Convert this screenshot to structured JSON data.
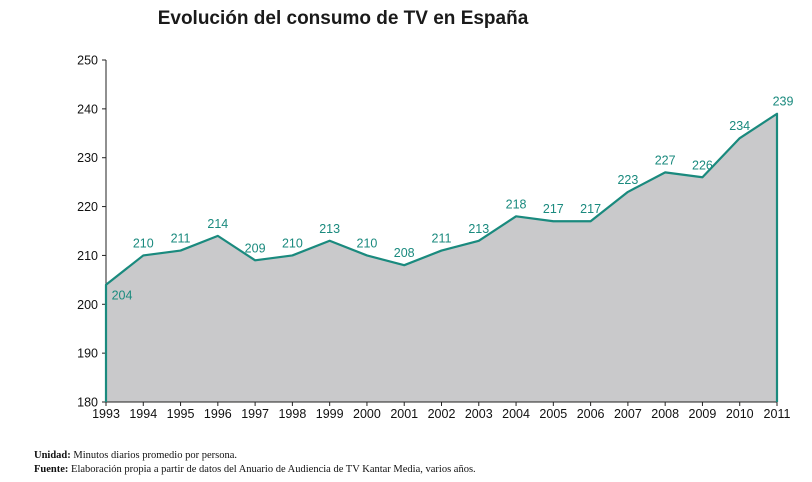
{
  "chart_data": {
    "type": "area",
    "title": "Evolución del consumo de TV en España",
    "x": [
      "1993",
      "1994",
      "1995",
      "1996",
      "1997",
      "1998",
      "1999",
      "2000",
      "2001",
      "2002",
      "2003",
      "2004",
      "2005",
      "2006",
      "2007",
      "2008",
      "2009",
      "2010",
      "2011"
    ],
    "values": [
      204,
      210,
      211,
      214,
      209,
      210,
      213,
      210,
      208,
      211,
      213,
      218,
      217,
      217,
      223,
      227,
      226,
      234,
      239
    ],
    "data_labels": [
      "204",
      "210",
      "211",
      "214",
      "209",
      "210",
      "213",
      "210",
      "208",
      "211",
      "213",
      "218",
      "217",
      "217",
      "223",
      "227",
      "226",
      "234",
      "239"
    ],
    "ylim": [
      180,
      250
    ],
    "yticks": [
      180,
      190,
      200,
      210,
      220,
      230,
      240,
      250
    ],
    "ytick_labels": [
      "180",
      "190",
      "200",
      "210",
      "220",
      "230",
      "240",
      "250"
    ],
    "xlabel": "",
    "ylabel": "",
    "grid": false,
    "colors": {
      "line": "#1a8a7e",
      "fill": "#c9c9cb",
      "labels": "#1a8a7e",
      "axis": "#222222"
    }
  },
  "footnotes": {
    "unit_label": "Unidad:",
    "unit_text": "Minutos diarios promedio por persona.",
    "source_label": "Fuente:",
    "source_text": "Elaboración propia a partir de datos del Anuario de Audiencia de TV Kantar Media, varios años."
  }
}
